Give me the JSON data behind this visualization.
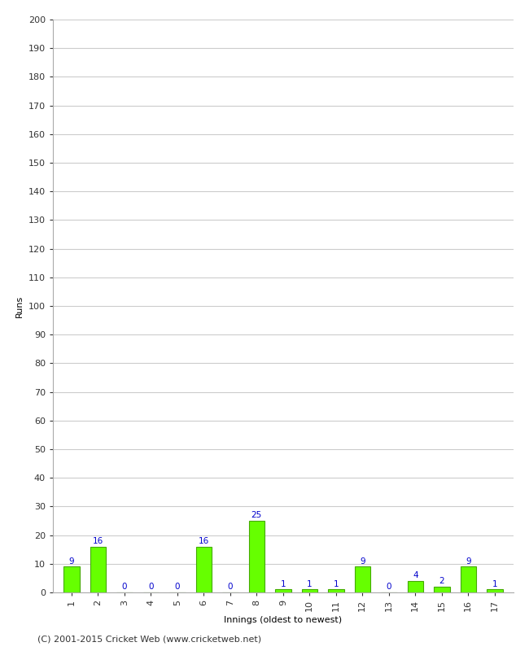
{
  "innings": [
    1,
    2,
    3,
    4,
    5,
    6,
    7,
    8,
    9,
    10,
    11,
    12,
    13,
    14,
    15,
    16,
    17
  ],
  "runs": [
    9,
    16,
    0,
    0,
    0,
    16,
    0,
    25,
    1,
    1,
    1,
    9,
    0,
    4,
    2,
    9,
    1
  ],
  "bar_color": "#66ff00",
  "bar_edge_color": "#44aa00",
  "label_color": "#0000cc",
  "ylabel": "Runs",
  "xlabel": "Innings (oldest to newest)",
  "ylim": [
    0,
    200
  ],
  "yticks": [
    0,
    10,
    20,
    30,
    40,
    50,
    60,
    70,
    80,
    90,
    100,
    110,
    120,
    130,
    140,
    150,
    160,
    170,
    180,
    190,
    200
  ],
  "footer": "(C) 2001-2015 Cricket Web (www.cricketweb.net)",
  "background_color": "#ffffff",
  "grid_color": "#cccccc",
  "label_fontsize": 7.5,
  "axis_tick_fontsize": 8,
  "axis_label_fontsize": 8,
  "footer_fontsize": 8,
  "bar_width": 0.6
}
